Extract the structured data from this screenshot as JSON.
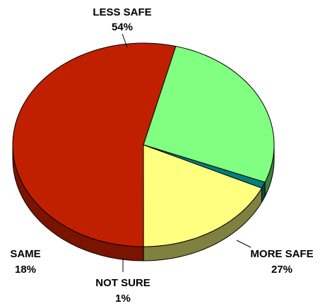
{
  "chart_data": {
    "type": "pie",
    "style": "3d-tilted",
    "slices": [
      {
        "label": "LESS SAFE",
        "value": 54,
        "value_label": "54%",
        "color": "#C02000",
        "side_color": "#7A1400"
      },
      {
        "label": "MORE SAFE",
        "value": 27,
        "value_label": "27%",
        "color": "#80FF80",
        "side_color": "#408040"
      },
      {
        "label": "NOT SURE",
        "value": 1,
        "value_label": "1%",
        "color": "#008080",
        "side_color": "#004C4C"
      },
      {
        "label": "SAME",
        "value": 18,
        "value_label": "18%",
        "color": "#FFFF80",
        "side_color": "#808040"
      }
    ],
    "legend": "none"
  }
}
